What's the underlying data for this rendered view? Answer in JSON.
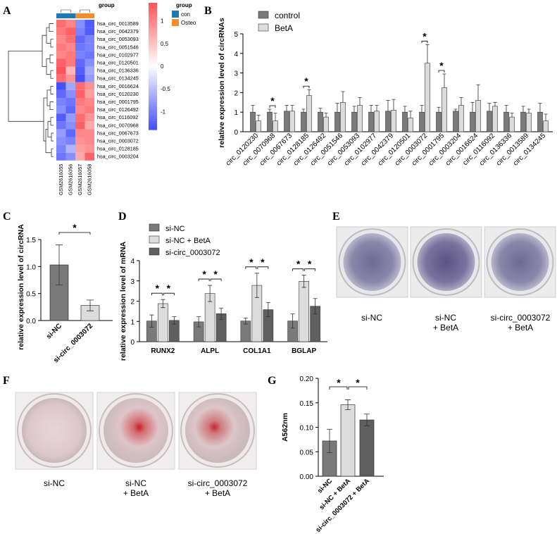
{
  "panels": {
    "A": "A",
    "B": "B",
    "C": "C",
    "D": "D",
    "E": "E",
    "F": "F",
    "G": "G"
  },
  "colors": {
    "dark": "#7a7a7a",
    "light": "#dcdcdc",
    "mid": "#5f5f5f",
    "con": "#1f77b4",
    "osteo": "#f28e2b"
  },
  "chart_data": [
    {
      "id": "A",
      "type": "heatmap",
      "legend_title": "group",
      "groups": [
        {
          "name": "con",
          "color": "#1f77b4"
        },
        {
          "name": "Osteo",
          "color": "#f28e2b"
        }
      ],
      "columns": [
        "GSM2616055",
        "GSM2616056",
        "GSM2616057",
        "GSM2616058"
      ],
      "column_groups": [
        "con",
        "con",
        "Osteo",
        "Osteo"
      ],
      "rows": [
        "hsa_circ_0013589",
        "hsa_circ_0042379",
        "hsa_circ_0053093",
        "hsa_circ_0051546",
        "hsa_circ_0102977",
        "hsa_circ_0120501",
        "hsa_circ_0136336",
        "hsa_circ_0134245",
        "hsa_circ_0016624",
        "hsa_circ_0120230",
        "hsa_circ_0001795",
        "hsa_circ_0126492",
        "hsa_circ_0116092",
        "hsa_circ_0070968",
        "hsa_circ_0067673",
        "hsa_circ_0003072",
        "hsa_circ_0128185",
        "hsa_circ_0003204"
      ],
      "values": [
        [
          1.2,
          1.0,
          -0.9,
          -1.3
        ],
        [
          1.1,
          1.3,
          -1.0,
          -1.3
        ],
        [
          1.0,
          1.2,
          -1.2,
          -1.0
        ],
        [
          1.1,
          1.0,
          -1.1,
          -1.0
        ],
        [
          1.0,
          1.1,
          -1.0,
          -1.1
        ],
        [
          1.3,
          1.1,
          -1.2,
          -0.9
        ],
        [
          1.4,
          0.6,
          -1.3,
          -0.7
        ],
        [
          1.2,
          0.9,
          -1.4,
          -0.8
        ],
        [
          -1.4,
          -0.7,
          1.2,
          0.9
        ],
        [
          -1.2,
          -0.9,
          1.3,
          0.8
        ],
        [
          -1.0,
          -1.1,
          1.1,
          1.0
        ],
        [
          -0.9,
          -1.2,
          1.0,
          1.1
        ],
        [
          -1.3,
          -0.8,
          1.2,
          0.9
        ],
        [
          -1.1,
          -0.9,
          1.3,
          0.7
        ],
        [
          -0.8,
          -1.2,
          1.0,
          1.0
        ],
        [
          -0.9,
          -1.0,
          0.9,
          1.0
        ],
        [
          -1.0,
          -0.6,
          0.8,
          0.9
        ],
        [
          -1.1,
          -0.9,
          0.7,
          1.3
        ]
      ],
      "scale_ticks": [
        1,
        0.5,
        0,
        -0.5,
        -1
      ]
    },
    {
      "id": "B",
      "type": "bar",
      "ylabel": "relative expression level of circRNAs",
      "ylim": [
        0,
        5
      ],
      "yticks": [
        0,
        1,
        2,
        3,
        4,
        5
      ],
      "legend": [
        "control",
        "BetA"
      ],
      "categories": [
        "circ_0120230",
        "circ_0070968",
        "circ_0067673",
        "circ_0128185",
        "circ_0126492",
        "circ_0051546",
        "circ_0053093",
        "circ_0102977",
        "circ_0042379",
        "circ_0120501",
        "circ_0003072",
        "circ_0001795",
        "circ_0003204",
        "circ_0016624",
        "circ_0116092",
        "circ_0136336",
        "circ_0013589",
        "circ_0134245"
      ],
      "series": [
        {
          "name": "control",
          "values": [
            1.0,
            1.0,
            1.05,
            1.0,
            1.0,
            1.0,
            1.0,
            1.0,
            1.05,
            1.0,
            1.0,
            1.0,
            1.05,
            1.0,
            1.05,
            1.0,
            1.0,
            1.0
          ],
          "errors": [
            0.35,
            0.15,
            0.3,
            0.15,
            0.2,
            0.45,
            0.3,
            0.35,
            0.55,
            0.3,
            0.35,
            0.25,
            0.1,
            0.5,
            0.4,
            0.35,
            0.3,
            0.45
          ]
        },
        {
          "name": "BetA",
          "values": [
            0.55,
            0.55,
            1.05,
            1.85,
            0.75,
            1.5,
            1.35,
            1.05,
            1.1,
            0.7,
            3.5,
            2.25,
            1.35,
            1.6,
            1.3,
            0.75,
            0.95,
            0.55
          ],
          "errors": [
            0.3,
            0.4,
            0.3,
            0.3,
            0.2,
            0.55,
            0.4,
            0.3,
            0.55,
            0.35,
            0.95,
            0.7,
            0.4,
            0.8,
            0.2,
            0.2,
            0.2,
            0.35
          ]
        }
      ],
      "significance": [
        {
          "index": 1,
          "label": "*"
        },
        {
          "index": 3,
          "label": "*"
        },
        {
          "index": 10,
          "label": "*"
        },
        {
          "index": 11,
          "label": "*"
        }
      ]
    },
    {
      "id": "C",
      "type": "bar",
      "ylabel": "relative expression level of circRNA",
      "ylim": [
        0,
        1.5
      ],
      "yticks": [
        0,
        0.5,
        1.0,
        1.5
      ],
      "yticklabels": [
        "0.0",
        "0.5",
        "1.0",
        "1.5"
      ],
      "categories": [
        "si-NC",
        "si-circ_0003072"
      ],
      "values": [
        1.03,
        0.28
      ],
      "errors": [
        0.37,
        0.1
      ],
      "significance": [
        {
          "from": 0,
          "to": 1,
          "label": "*"
        }
      ]
    },
    {
      "id": "D",
      "type": "bar",
      "ylabel": "relative expression level of mRNA",
      "ylim": [
        0,
        4
      ],
      "yticks": [
        0,
        1,
        2,
        3,
        4
      ],
      "legend": [
        "si-NC",
        "si-NC + BetA",
        "si-circ_0003072"
      ],
      "categories": [
        "RUNX2",
        "ALPL",
        "COL1A1",
        "BGLAP"
      ],
      "series": [
        {
          "name": "si-NC",
          "values": [
            1.02,
            0.98,
            1.02,
            1.02
          ],
          "errors": [
            0.3,
            0.25,
            0.15,
            0.35
          ]
        },
        {
          "name": "si-NC + BetA",
          "values": [
            1.88,
            2.38,
            2.78,
            2.98
          ],
          "errors": [
            0.2,
            0.4,
            0.6,
            0.3
          ]
        },
        {
          "name": "si-circ_0003072",
          "values": [
            1.05,
            1.38,
            1.58,
            1.75
          ],
          "errors": [
            0.18,
            0.28,
            0.35,
            0.38
          ]
        }
      ],
      "significance_label": "*"
    },
    {
      "id": "G",
      "type": "bar",
      "ylabel": "A562nm",
      "ylim": [
        0,
        0.2
      ],
      "yticks": [
        0,
        0.05,
        0.1,
        0.15,
        0.2
      ],
      "yticklabels": [
        "0.00",
        "0.05",
        "0.10",
        "0.15",
        "0.20"
      ],
      "categories": [
        "si-NC",
        "si-NC + BetA",
        "si-circ_0003072 + BetA"
      ],
      "values": [
        0.072,
        0.146,
        0.115
      ],
      "errors": [
        0.024,
        0.01,
        0.012
      ],
      "significance_label": "*"
    }
  ],
  "photos": {
    "E": [
      "si-NC",
      "si-NC\n+ BetA",
      "si-circ_0003072\n+ BetA"
    ],
    "F": [
      "si-NC",
      "si-NC\n+ BetA",
      "si-circ_0003072\n+ BetA"
    ]
  }
}
